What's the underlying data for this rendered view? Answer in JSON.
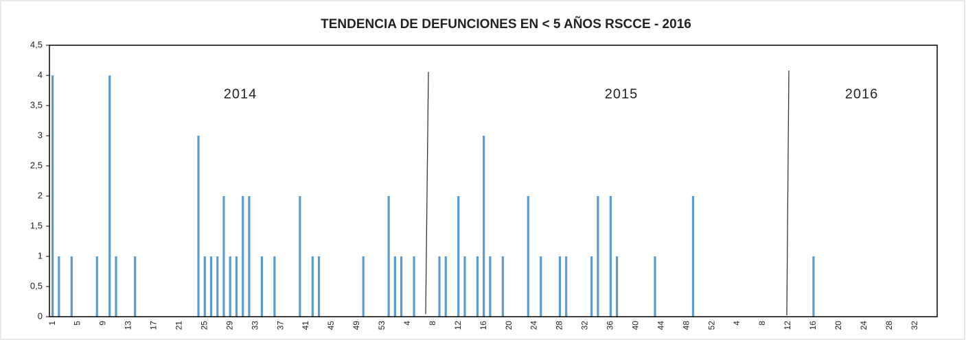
{
  "chart_data": {
    "type": "bar",
    "title": "TENDENCIA DE DEFUNCIONES  EN < 5 AÑOS    RSCCE -  2016",
    "annotations": [
      "2014",
      "2015",
      "2016"
    ],
    "color": "#5b9bd5",
    "ylim": [
      0,
      4.5
    ],
    "yticks": [
      0,
      {
        "value": 0.5,
        "label": "0,5"
      },
      1,
      {
        "value": 1.5,
        "label": "1,5"
      },
      2,
      {
        "value": 2.5,
        "label": "2,5"
      },
      3,
      {
        "value": 3.5,
        "label": "3,5"
      },
      4,
      {
        "value": 4.5,
        "label": "4,5"
      }
    ],
    "categories": [
      "1",
      null,
      null,
      null,
      "5",
      null,
      null,
      null,
      "9",
      null,
      null,
      null,
      "13",
      null,
      null,
      null,
      "17",
      null,
      null,
      null,
      "21",
      null,
      null,
      null,
      "25",
      null,
      null,
      null,
      "29",
      null,
      null,
      null,
      "33",
      null,
      null,
      null,
      "37",
      null,
      null,
      null,
      "41",
      null,
      null,
      null,
      "45",
      null,
      null,
      null,
      "49",
      null,
      null,
      null,
      "53",
      null,
      null,
      null,
      "4",
      null,
      null,
      null,
      "8",
      null,
      null,
      null,
      "12",
      null,
      null,
      null,
      "16",
      null,
      null,
      null,
      "20",
      null,
      null,
      null,
      "24",
      null,
      null,
      null,
      "28",
      null,
      null,
      null,
      "32",
      null,
      null,
      null,
      "36",
      null,
      null,
      null,
      "40",
      null,
      null,
      null,
      "44",
      null,
      null,
      null,
      "48",
      null,
      null,
      null,
      "52",
      null,
      null,
      null,
      "4",
      null,
      null,
      null,
      "8",
      null,
      null,
      null,
      "12",
      null,
      null,
      null,
      "16",
      null,
      null,
      null,
      "20",
      null,
      null,
      null,
      "24",
      null,
      null,
      null,
      "28",
      null,
      null,
      null,
      "32",
      null,
      null,
      null
    ],
    "values": [
      4,
      1,
      0,
      1,
      0,
      0,
      0,
      1,
      0,
      4,
      1,
      0,
      0,
      1,
      0,
      0,
      0,
      0,
      0,
      0,
      0,
      0,
      0,
      3,
      1,
      1,
      1,
      2,
      1,
      1,
      2,
      2,
      0,
      1,
      0,
      1,
      0,
      0,
      0,
      2,
      0,
      1,
      1,
      0,
      0,
      0,
      0,
      0,
      0,
      1,
      0,
      0,
      0,
      2,
      1,
      1,
      0,
      1,
      0,
      0,
      0,
      1,
      1,
      0,
      2,
      1,
      0,
      1,
      3,
      1,
      0,
      1,
      0,
      0,
      0,
      2,
      0,
      1,
      0,
      0,
      1,
      1,
      0,
      0,
      0,
      1,
      2,
      0,
      2,
      1,
      0,
      0,
      0,
      0,
      0,
      1,
      0,
      0,
      0,
      0,
      0,
      2,
      0,
      0,
      0,
      0,
      0,
      0,
      0,
      0,
      0,
      0,
      0,
      0,
      0,
      0,
      0,
      0,
      0,
      0,
      1,
      0,
      0,
      0,
      0,
      0,
      0,
      0,
      0,
      0,
      0,
      0,
      0,
      0,
      0,
      0,
      0,
      0,
      0,
      0
    ]
  }
}
